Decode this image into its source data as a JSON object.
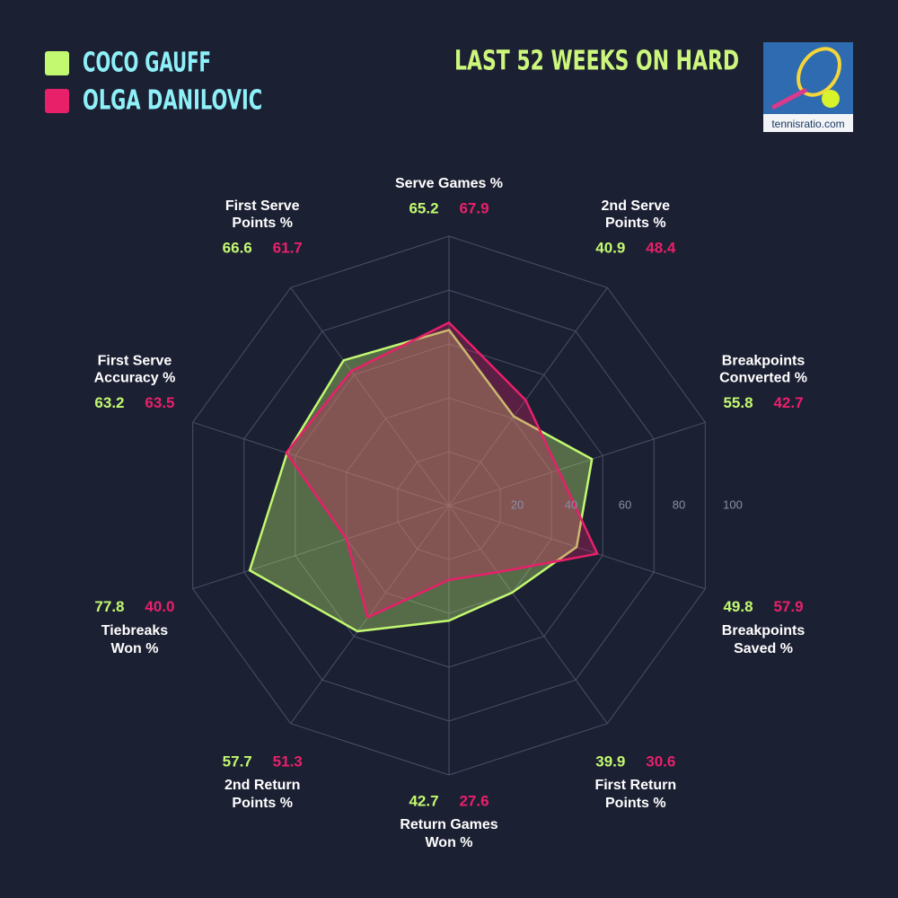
{
  "chart_data": {
    "type": "radar",
    "title": "LAST 52 WEEKS ON HARD",
    "logo_text": "tennisratio.com",
    "categories": [
      [
        "Serve Games %"
      ],
      [
        "2nd Serve",
        "Points %"
      ],
      [
        "Breakpoints",
        "Converted %"
      ],
      [
        "Breakpoints",
        "Saved %"
      ],
      [
        "First Return",
        "Points %"
      ],
      [
        "Return Games",
        "Won %"
      ],
      [
        "2nd Return",
        "Points %"
      ],
      [
        "Tiebreaks",
        "Won %"
      ],
      [
        "First Serve",
        "Accuracy %"
      ],
      [
        "First Serve",
        "Points %"
      ]
    ],
    "series": [
      {
        "name": "COCO GAUFF",
        "color": "#c2f970",
        "values": [
          65.2,
          40.9,
          55.8,
          49.8,
          39.9,
          42.7,
          57.7,
          77.8,
          63.2,
          66.6
        ],
        "value_labels": [
          "65.2",
          "40.9",
          "55.8",
          "49.8",
          "39.9",
          "42.7",
          "57.7",
          "77.8",
          "63.2",
          "66.6"
        ]
      },
      {
        "name": "OLGA DANILOVIC",
        "color": "#e8206a",
        "values": [
          67.9,
          48.4,
          42.7,
          57.9,
          30.6,
          27.6,
          51.3,
          40.0,
          63.5,
          61.7
        ],
        "value_labels": [
          "67.9",
          "48.4",
          "42.7",
          "57.9",
          "30.6",
          "27.6",
          "51.3",
          "40.0",
          "63.5",
          "61.7"
        ]
      }
    ],
    "rlim": [
      0,
      100
    ],
    "rticks": [
      20,
      40,
      60,
      80,
      100
    ],
    "grid": true
  }
}
